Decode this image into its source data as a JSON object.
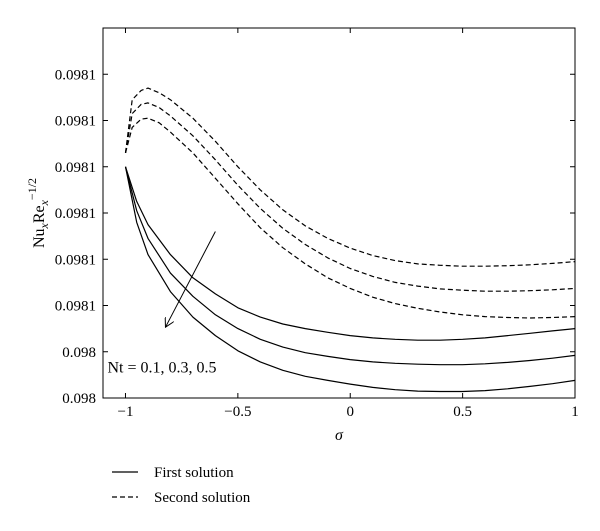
{
  "chart_data": {
    "type": "line",
    "xlabel": "σ",
    "ylabel": {
      "base1": "Nu",
      "sub1": "x",
      "base2": "Re",
      "sub2": "x",
      "sup": "−1/2"
    },
    "xlim": [
      -1.1,
      1.0
    ],
    "ylim": [
      0,
      8
    ],
    "grid": false,
    "x_ticks": [
      {
        "value": -1,
        "label": "−1"
      },
      {
        "value": -0.5,
        "label": "−0.5"
      },
      {
        "value": 0,
        "label": "0"
      },
      {
        "value": 0.5,
        "label": "0.5"
      },
      {
        "value": 1,
        "label": "1"
      }
    ],
    "y_ticks": [
      {
        "value": 0,
        "label": "0.098"
      },
      {
        "value": 1,
        "label": "0.098"
      },
      {
        "value": 2,
        "label": "0.0981"
      },
      {
        "value": 3,
        "label": "0.0981"
      },
      {
        "value": 4,
        "label": "0.0981"
      },
      {
        "value": 5,
        "label": "0.0981"
      },
      {
        "value": 6,
        "label": "0.0981"
      },
      {
        "value": 7,
        "label": "0.0981"
      }
    ],
    "annotation": {
      "text": "Nt = 0.1, 0.3, 0.5",
      "arrow_from": [
        -0.6,
        3.6
      ],
      "arrow_to": [
        -0.82,
        1.55
      ],
      "text_at": [
        -1.08,
        0.55
      ]
    },
    "series": [
      {
        "style": "solid",
        "x": [
          -1.0,
          -0.95,
          -0.9,
          -0.8,
          -0.7,
          -0.6,
          -0.5,
          -0.4,
          -0.3,
          -0.2,
          -0.1,
          0,
          0.1,
          0.2,
          0.3,
          0.4,
          0.5,
          0.6,
          0.7,
          0.8,
          0.9,
          1.0
        ],
        "y": [
          5.0,
          4.25,
          3.75,
          3.1,
          2.6,
          2.25,
          1.95,
          1.75,
          1.6,
          1.5,
          1.42,
          1.35,
          1.3,
          1.27,
          1.25,
          1.25,
          1.27,
          1.3,
          1.35,
          1.4,
          1.45,
          1.5
        ]
      },
      {
        "style": "solid",
        "x": [
          -1.0,
          -0.95,
          -0.9,
          -0.8,
          -0.7,
          -0.6,
          -0.5,
          -0.4,
          -0.3,
          -0.2,
          -0.1,
          0,
          0.1,
          0.2,
          0.3,
          0.4,
          0.5,
          0.6,
          0.7,
          0.8,
          0.9,
          1.0
        ],
        "y": [
          5.0,
          4.05,
          3.45,
          2.7,
          2.2,
          1.8,
          1.5,
          1.27,
          1.1,
          0.98,
          0.9,
          0.83,
          0.78,
          0.75,
          0.73,
          0.72,
          0.72,
          0.74,
          0.77,
          0.81,
          0.86,
          0.92
        ]
      },
      {
        "style": "solid",
        "x": [
          -1.0,
          -0.95,
          -0.9,
          -0.8,
          -0.7,
          -0.6,
          -0.5,
          -0.4,
          -0.3,
          -0.2,
          -0.1,
          0,
          0.1,
          0.2,
          0.3,
          0.4,
          0.5,
          0.6,
          0.7,
          0.8,
          0.9,
          1.0
        ],
        "y": [
          5.0,
          3.8,
          3.1,
          2.3,
          1.75,
          1.35,
          1.02,
          0.78,
          0.6,
          0.47,
          0.38,
          0.3,
          0.23,
          0.18,
          0.15,
          0.14,
          0.14,
          0.16,
          0.2,
          0.25,
          0.31,
          0.38
        ]
      },
      {
        "style": "dashed",
        "x": [
          -1.0,
          -0.97,
          -0.93,
          -0.9,
          -0.85,
          -0.8,
          -0.7,
          -0.6,
          -0.5,
          -0.4,
          -0.3,
          -0.2,
          -0.1,
          0,
          0.1,
          0.2,
          0.3,
          0.4,
          0.5,
          0.6,
          0.7,
          0.8,
          0.9,
          1.0
        ],
        "y": [
          5.3,
          6.45,
          6.65,
          6.7,
          6.6,
          6.45,
          6.05,
          5.55,
          5.0,
          4.5,
          4.07,
          3.72,
          3.45,
          3.24,
          3.08,
          2.97,
          2.9,
          2.87,
          2.85,
          2.85,
          2.86,
          2.88,
          2.91,
          2.95
        ]
      },
      {
        "style": "dashed",
        "x": [
          -1.0,
          -0.97,
          -0.93,
          -0.9,
          -0.85,
          -0.8,
          -0.7,
          -0.6,
          -0.5,
          -0.4,
          -0.3,
          -0.2,
          -0.1,
          0,
          0.1,
          0.2,
          0.3,
          0.4,
          0.5,
          0.6,
          0.7,
          0.8,
          0.9,
          1.0
        ],
        "y": [
          5.3,
          6.15,
          6.35,
          6.38,
          6.28,
          6.1,
          5.67,
          5.15,
          4.6,
          4.1,
          3.67,
          3.32,
          3.03,
          2.8,
          2.63,
          2.5,
          2.42,
          2.36,
          2.33,
          2.31,
          2.31,
          2.32,
          2.34,
          2.37
        ]
      },
      {
        "style": "dashed",
        "x": [
          -1.0,
          -0.97,
          -0.93,
          -0.9,
          -0.85,
          -0.8,
          -0.7,
          -0.6,
          -0.5,
          -0.4,
          -0.3,
          -0.2,
          -0.1,
          0,
          0.1,
          0.2,
          0.3,
          0.4,
          0.5,
          0.6,
          0.7,
          0.8,
          0.9,
          1.0
        ],
        "y": [
          5.3,
          5.85,
          6.03,
          6.05,
          5.95,
          5.75,
          5.3,
          4.75,
          4.2,
          3.68,
          3.25,
          2.9,
          2.6,
          2.37,
          2.18,
          2.04,
          1.94,
          1.86,
          1.8,
          1.76,
          1.74,
          1.73,
          1.74,
          1.76
        ]
      }
    ],
    "legend": {
      "placement": "bottom-left",
      "entries": [
        {
          "style": "solid",
          "label": "First solution"
        },
        {
          "style": "dashed",
          "label": "Second solution"
        }
      ]
    }
  }
}
